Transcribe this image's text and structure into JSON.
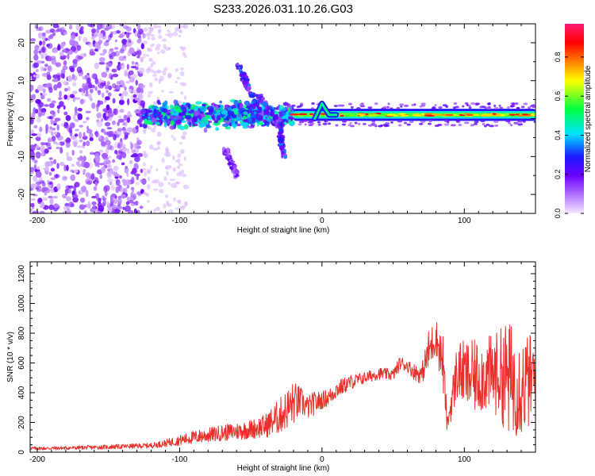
{
  "title": "S233.2026.031.10.26.G03",
  "chart_data": [
    {
      "type": "heatmap",
      "name": "spectrogram",
      "xlabel": "Height of straight line (km)",
      "ylabel": "Frequency (Hz)",
      "xlim": [
        -205,
        150
      ],
      "ylim": [
        -25,
        25
      ],
      "xticks": [
        -200,
        -100,
        0,
        100
      ],
      "xtick_labels": [
        "-200",
        "-100",
        "0",
        "100"
      ],
      "yticks": [
        -20,
        -10,
        0,
        10,
        20
      ],
      "ytick_labels": [
        "-20",
        "-10",
        "0",
        "10",
        "20"
      ],
      "colorbar": {
        "label": "Normalized spectral amplitude",
        "range": [
          0,
          0.97
        ],
        "ticks": [
          0.0,
          0.2,
          0.4,
          0.6,
          0.8
        ],
        "tick_labels": [
          "0.0",
          "0.2",
          "0.4",
          "0.6",
          "0.8"
        ],
        "colors": [
          "#f4e8ff",
          "#9b30ff",
          "#1a1aff",
          "#00e5ff",
          "#00ff40",
          "#ffff00",
          "#ff8000",
          "#ff0000",
          "#ff1a75"
        ]
      },
      "features": [
        {
          "label": "noise",
          "x_range": [
            -205,
            -125
          ],
          "y_range": [
            -25,
            25
          ],
          "amplitude": 0.1
        },
        {
          "label": "band",
          "x_range": [
            -125,
            -20
          ],
          "center_hz": 1,
          "spread_hz": 3,
          "amplitude": 0.3
        },
        {
          "label": "streak",
          "x": [
            -60,
            -45
          ],
          "y": [
            15,
            3
          ],
          "amplitude": 0.25
        },
        {
          "label": "streak",
          "x": [
            -45,
            -28
          ],
          "y": [
            6,
            -2
          ],
          "amplitude": 0.25
        },
        {
          "label": "streak",
          "x": [
            -30,
            -27
          ],
          "y": [
            -1,
            -10
          ],
          "amplitude": 0.25
        },
        {
          "label": "streak",
          "x": [
            -68,
            -60
          ],
          "y": [
            -8,
            -15
          ],
          "amplitude": 0.15
        },
        {
          "label": "line",
          "x_range": [
            -20,
            150
          ],
          "center_hz": 1,
          "amplitude": 0.8
        },
        {
          "label": "wiggle",
          "x": [
            -5,
            0,
            5,
            10
          ],
          "y": [
            0,
            4,
            1,
            1
          ],
          "amplitude": 0.5
        }
      ]
    },
    {
      "type": "line",
      "name": "snr",
      "xlabel": "Height of straight line (km)",
      "ylabel": "SNR (10 * v/v)",
      "xlim": [
        -205,
        150
      ],
      "ylim": [
        0,
        1280
      ],
      "xticks": [
        -200,
        -100,
        0,
        100
      ],
      "xtick_labels": [
        "-200",
        "-100",
        "0",
        "100"
      ],
      "yticks": [
        0,
        200,
        400,
        600,
        800,
        1000,
        1200
      ],
      "ytick_labels": [
        "0",
        "200",
        "400",
        "600",
        "800",
        "1000",
        "1200"
      ],
      "color": "#e8302a",
      "envelope": {
        "x": [
          -205,
          -180,
          -150,
          -120,
          -110,
          -100,
          -90,
          -80,
          -70,
          -60,
          -50,
          -40,
          -30,
          -20,
          -15,
          -10,
          -5,
          0,
          5,
          10,
          20,
          30,
          40,
          50,
          55,
          60,
          65,
          70,
          75,
          80,
          85,
          88,
          95,
          105,
          115,
          125,
          130,
          140,
          150
        ],
        "mean": [
          25,
          28,
          35,
          45,
          60,
          80,
          100,
          115,
          130,
          140,
          155,
          175,
          240,
          330,
          340,
          300,
          330,
          350,
          370,
          420,
          470,
          500,
          530,
          520,
          600,
          580,
          540,
          520,
          680,
          780,
          600,
          180,
          550,
          500,
          520,
          530,
          500,
          450,
          500
        ],
        "spread": [
          12,
          12,
          15,
          18,
          25,
          35,
          45,
          50,
          55,
          60,
          65,
          80,
          120,
          150,
          100,
          80,
          80,
          60,
          60,
          60,
          50,
          40,
          40,
          40,
          50,
          40,
          60,
          60,
          150,
          120,
          200,
          60,
          200,
          250,
          250,
          300,
          400,
          350,
          300
        ]
      }
    }
  ]
}
